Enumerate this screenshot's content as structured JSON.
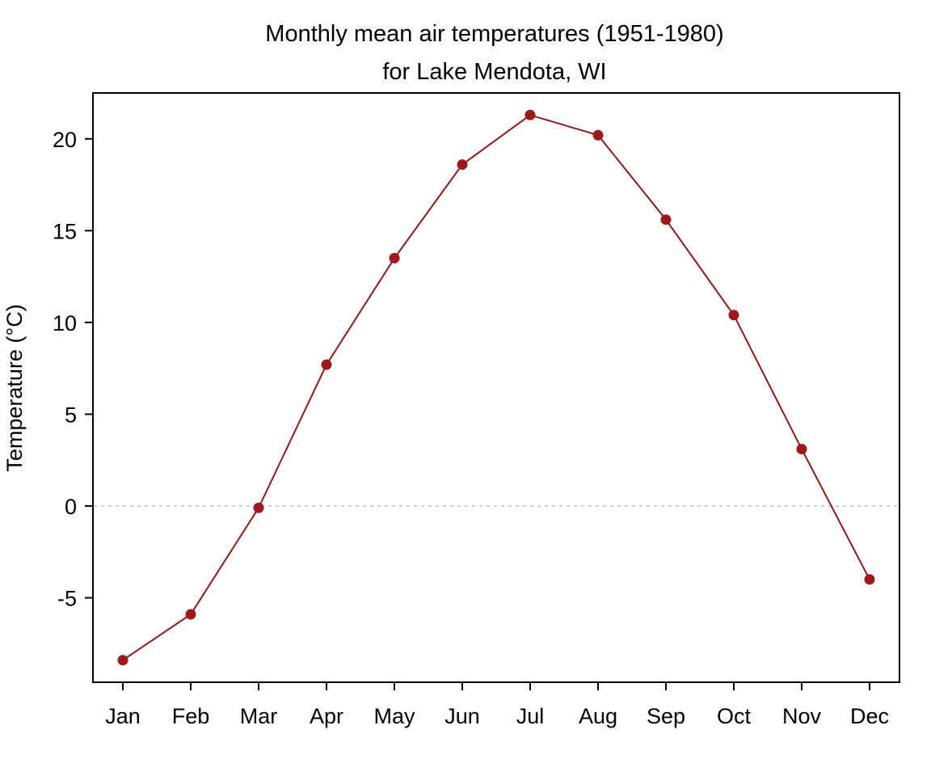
{
  "chart_data": {
    "type": "line",
    "title_line1": "Monthly mean air temperatures (1951-1980)",
    "title_line2": "for Lake Mendota, WI",
    "xlabel": "",
    "ylabel": "Temperature (°C)",
    "categories": [
      "Jan",
      "Feb",
      "Mar",
      "Apr",
      "May",
      "Jun",
      "Jul",
      "Aug",
      "Sep",
      "Oct",
      "Nov",
      "Dec"
    ],
    "values": [
      -8.4,
      -5.9,
      -0.1,
      7.7,
      13.5,
      18.6,
      21.3,
      20.2,
      15.6,
      10.4,
      3.1,
      -4.0
    ],
    "yticks": [
      "-5",
      "0",
      "5",
      "10",
      "15",
      "20"
    ],
    "ylim": [
      -9.6,
      22.5
    ],
    "reference_line_y": 0,
    "grid": false,
    "line_color": "#8b1a1a",
    "marker_color": "#9b1b1b",
    "reference_line_color": "#cccccc"
  }
}
